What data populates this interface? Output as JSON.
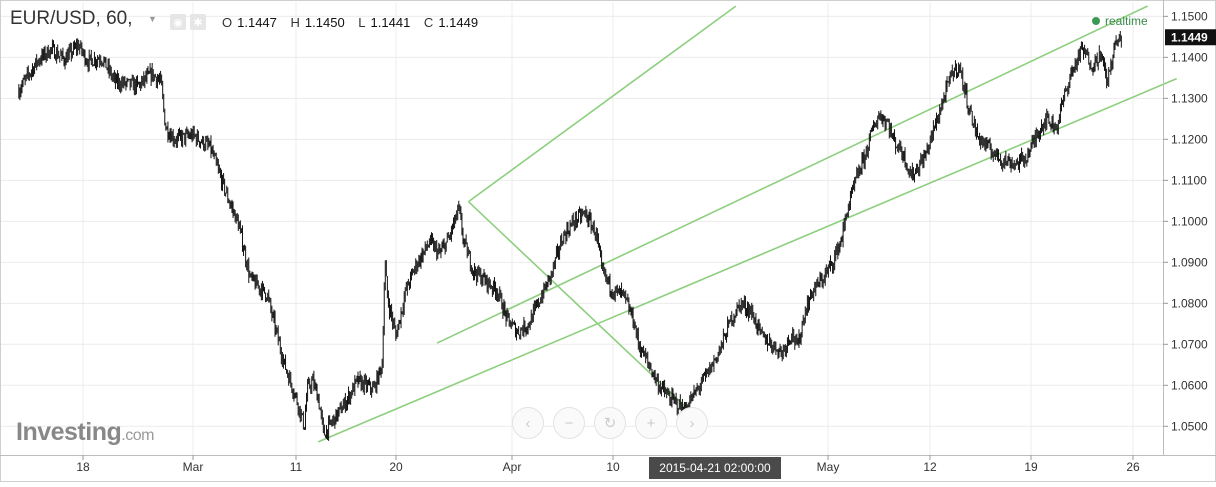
{
  "header": {
    "symbol": "EUR/USD, 60,",
    "ohlc": [
      {
        "key": "O",
        "value": "1.1447"
      },
      {
        "key": "H",
        "value": "1.1450"
      },
      {
        "key": "L",
        "value": "1.1441"
      },
      {
        "key": "C",
        "value": "1.1449"
      }
    ],
    "realtime_label": "realtime",
    "tools": [
      "eye-icon",
      "settings-icon"
    ]
  },
  "branding": {
    "logo_main": "Investing",
    "logo_suffix": ".com"
  },
  "nav_buttons": [
    {
      "name": "scroll-left-button",
      "icon": "‹"
    },
    {
      "name": "zoom-out-button",
      "icon": "−"
    },
    {
      "name": "reset-button",
      "icon": "↻"
    },
    {
      "name": "zoom-in-button",
      "icon": "+"
    },
    {
      "name": "scroll-right-button",
      "icon": "›"
    }
  ],
  "colors": {
    "candles": "#111111",
    "channel": "#8dcf7e",
    "last_price_bg": "#111111",
    "crosshair_label_bg": "#4a4a4a",
    "realtime": "#3a9a55"
  },
  "chart_data": {
    "type": "candlestick",
    "symbol": "EUR/USD",
    "interval": "60",
    "ylim": [
      1.043,
      1.1535
    ],
    "y_ticks": [
      "1.1500",
      "1.1400",
      "1.1300",
      "1.1200",
      "1.1100",
      "1.1000",
      "1.0900",
      "1.0800",
      "1.0700",
      "1.0600",
      "1.0500"
    ],
    "x_ticks": [
      {
        "label": "18",
        "date": "2015-02-18"
      },
      {
        "label": "Mar",
        "date": "2015-03-02"
      },
      {
        "label": "11",
        "date": "2015-03-11"
      },
      {
        "label": "20",
        "date": "2015-03-20"
      },
      {
        "label": "Apr",
        "date": "2015-04-01"
      },
      {
        "label": "10",
        "date": "2015-04-10"
      },
      {
        "label": "May",
        "date": "2015-05-01"
      },
      {
        "label": "12",
        "date": "2015-05-12"
      },
      {
        "label": "19",
        "date": "2015-05-19"
      },
      {
        "label": "26",
        "date": "2015-05-26"
      }
    ],
    "x_range": [
      "2015-02-11",
      "2015-05-29"
    ],
    "last_price": "1.1449",
    "crosshair_label": "2015-04-21 02:00:00",
    "price_path": [
      [
        "2015-02-11 00:00",
        1.132
      ],
      [
        "2015-02-13 00:00",
        1.139
      ],
      [
        "2015-02-14 12:00",
        1.142
      ],
      [
        "2015-02-16 00:00",
        1.1395
      ],
      [
        "2015-02-17 12:00",
        1.143
      ],
      [
        "2015-02-18 12:00",
        1.139
      ],
      [
        "2015-02-20 00:00",
        1.14
      ],
      [
        "2015-02-21 12:00",
        1.134
      ],
      [
        "2015-02-24 00:00",
        1.133
      ],
      [
        "2015-02-25 12:00",
        1.136
      ],
      [
        "2015-02-26 12:00",
        1.134
      ],
      [
        "2015-02-27 00:00",
        1.123
      ],
      [
        "2015-02-28 00:00",
        1.12
      ],
      [
        "2015-03-02 00:00",
        1.121
      ],
      [
        "2015-03-03 12:00",
        1.118
      ],
      [
        "2015-03-05 00:00",
        1.106
      ],
      [
        "2015-03-06 00:00",
        1.099
      ],
      [
        "2015-03-07 00:00",
        1.086
      ],
      [
        "2015-03-08 12:00",
        1.082
      ],
      [
        "2015-03-09 00:00",
        1.076
      ],
      [
        "2015-03-10 00:00",
        1.065
      ],
      [
        "2015-03-11 00:00",
        1.057
      ],
      [
        "2015-03-11 18:00",
        1.05
      ],
      [
        "2015-03-12 00:00",
        1.059
      ],
      [
        "2015-03-12 12:00",
        1.061
      ],
      [
        "2015-03-13 00:00",
        1.057
      ],
      [
        "2015-03-13 12:00",
        1.048
      ],
      [
        "2015-03-14 12:00",
        1.052
      ],
      [
        "2015-03-15 12:00",
        1.056
      ],
      [
        "2015-03-16 12:00",
        1.061
      ],
      [
        "2015-03-18 00:00",
        1.059
      ],
      [
        "2015-03-18 18:00",
        1.065
      ],
      [
        "2015-03-19 00:00",
        1.09
      ],
      [
        "2015-03-19 06:00",
        1.081
      ],
      [
        "2015-03-20 00:00",
        1.072
      ],
      [
        "2015-03-21 00:00",
        1.083
      ],
      [
        "2015-03-22 00:00",
        1.089
      ],
      [
        "2015-03-23 12:00",
        1.095
      ],
      [
        "2015-03-24 12:00",
        1.092
      ],
      [
        "2015-03-25 12:00",
        1.096
      ],
      [
        "2015-03-26 12:00",
        1.103
      ],
      [
        "2015-03-27 00:00",
        1.095
      ],
      [
        "2015-03-28 00:00",
        1.088
      ],
      [
        "2015-03-29 12:00",
        1.085
      ],
      [
        "2015-03-30 12:00",
        1.083
      ],
      [
        "2015-03-31 12:00",
        1.076
      ],
      [
        "2015-04-01 12:00",
        1.073
      ],
      [
        "2015-04-02 12:00",
        1.075
      ],
      [
        "2015-04-03 00:00",
        1.078
      ],
      [
        "2015-04-04 12:00",
        1.087
      ],
      [
        "2015-04-05 12:00",
        1.096
      ],
      [
        "2015-04-06 12:00",
        1.1
      ],
      [
        "2015-04-07 12:00",
        1.102
      ],
      [
        "2015-04-08 12:00",
        1.097
      ],
      [
        "2015-04-09 00:00",
        1.088
      ],
      [
        "2015-04-10 00:00",
        1.083
      ],
      [
        "2015-04-11 00:00",
        1.082
      ],
      [
        "2015-04-12 00:00",
        1.076
      ],
      [
        "2015-04-12 12:00",
        1.07
      ],
      [
        "2015-04-13 12:00",
        1.065
      ],
      [
        "2015-04-14 12:00",
        1.06
      ],
      [
        "2015-04-15 12:00",
        1.057
      ],
      [
        "2015-04-16 12:00",
        1.055
      ],
      [
        "2015-04-17 00:00",
        1.054
      ],
      [
        "2015-04-17 12:00",
        1.056
      ],
      [
        "2015-04-18 12:00",
        1.06
      ],
      [
        "2015-04-19 12:00",
        1.064
      ],
      [
        "2015-04-20 12:00",
        1.069
      ],
      [
        "2015-04-21 12:00",
        1.076
      ],
      [
        "2015-04-22 12:00",
        1.08
      ],
      [
        "2015-04-23 12:00",
        1.078
      ],
      [
        "2015-04-24 12:00",
        1.072
      ],
      [
        "2015-04-25 12:00",
        1.07
      ],
      [
        "2015-04-26 12:00",
        1.068
      ],
      [
        "2015-04-27 12:00",
        1.073
      ],
      [
        "2015-04-28 00:00",
        1.069
      ],
      [
        "2015-04-28 18:00",
        1.078
      ],
      [
        "2015-04-29 12:00",
        1.083
      ],
      [
        "2015-04-30 12:00",
        1.086
      ],
      [
        "2015-05-01 12:00",
        1.09
      ],
      [
        "2015-05-02 12:00",
        1.096
      ],
      [
        "2015-05-03 00:00",
        1.102
      ],
      [
        "2015-05-04 00:00",
        1.11
      ],
      [
        "2015-05-05 00:00",
        1.116
      ],
      [
        "2015-05-05 18:00",
        1.122
      ],
      [
        "2015-05-06 12:00",
        1.126
      ],
      [
        "2015-05-07 12:00",
        1.124
      ],
      [
        "2015-05-08 00:00",
        1.12
      ],
      [
        "2015-05-09 00:00",
        1.117
      ],
      [
        "2015-05-10 00:00",
        1.111
      ],
      [
        "2015-05-11 12:00",
        1.116
      ],
      [
        "2015-05-12 12:00",
        1.125
      ],
      [
        "2015-05-13 12:00",
        1.136
      ],
      [
        "2015-05-14 00:00",
        1.138
      ],
      [
        "2015-05-14 18:00",
        1.127
      ],
      [
        "2015-05-15 06:00",
        1.121
      ],
      [
        "2015-05-16 00:00",
        1.118
      ],
      [
        "2015-05-17 00:00",
        1.115
      ],
      [
        "2015-05-18 00:00",
        1.114
      ],
      [
        "2015-05-18 18:00",
        1.116
      ],
      [
        "2015-05-19 12:00",
        1.122
      ],
      [
        "2015-05-20 00:00",
        1.125
      ],
      [
        "2015-05-20 18:00",
        1.123
      ],
      [
        "2015-05-21 06:00",
        1.13
      ],
      [
        "2015-05-21 18:00",
        1.136
      ],
      [
        "2015-05-22 12:00",
        1.142
      ],
      [
        "2015-05-23 06:00",
        1.138
      ],
      [
        "2015-05-23 18:00",
        1.141
      ],
      [
        "2015-05-24 06:00",
        1.134
      ],
      [
        "2015-05-24 18:00",
        1.143
      ],
      [
        "2015-05-25 06:00",
        1.1449
      ]
    ],
    "drawings": [
      {
        "type": "line",
        "from": [
          "2015-03-13 00:00",
          1.0462
        ],
        "to": [
          "2015-05-29 00:00",
          1.1348
        ]
      },
      {
        "type": "line",
        "from": [
          "2015-03-27 12:00",
          1.1048
        ],
        "to": [
          "2015-04-17 12:00",
          1.0538
        ]
      },
      {
        "type": "line",
        "from": [
          "2015-03-27 12:00",
          1.1048
        ],
        "to": [
          "2015-04-22 00:00",
          1.1525
        ]
      },
      {
        "type": "line",
        "from": [
          "2015-03-24 06:00",
          1.0703
        ],
        "to": [
          "2015-05-27 00:00",
          1.1525
        ]
      }
    ]
  }
}
